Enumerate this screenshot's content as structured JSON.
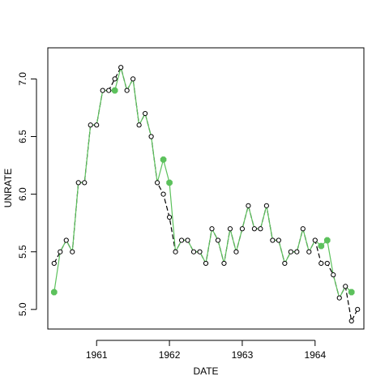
{
  "chart_data": {
    "type": "line",
    "xlabel": "DATE",
    "ylabel": "UNRATE",
    "xlim": [
      1960.33,
      1964.67
    ],
    "ylim": [
      4.83,
      7.27
    ],
    "x_ticks": [
      1961,
      1962,
      1963,
      1964
    ],
    "x_tick_labels": [
      "1961",
      "1962",
      "1963",
      "1964"
    ],
    "y_ticks": [
      5.0,
      5.5,
      6.0,
      6.5,
      7.0
    ],
    "y_tick_labels": [
      "5.0",
      "5.5",
      "6.0",
      "6.5",
      "7.0"
    ],
    "grid": false,
    "series": [
      {
        "style": "dashed black line with open circle markers",
        "color": "#000000",
        "x": [
          "1960-06",
          "1960-07",
          "1960-08",
          "1960-09",
          "1960-10",
          "1960-11",
          "1960-12",
          "1961-01",
          "1961-02",
          "1961-03",
          "1961-04",
          "1961-05",
          "1961-06",
          "1961-07",
          "1961-08",
          "1961-09",
          "1961-10",
          "1961-11",
          "1961-12",
          "1962-01",
          "1962-02",
          "1962-03",
          "1962-04",
          "1962-05",
          "1962-06",
          "1962-07",
          "1962-08",
          "1962-09",
          "1962-10",
          "1962-11",
          "1962-12",
          "1963-01",
          "1963-02",
          "1963-03",
          "1963-04",
          "1963-05",
          "1963-06",
          "1963-07",
          "1963-08",
          "1963-09",
          "1963-10",
          "1963-11",
          "1963-12",
          "1964-01",
          "1964-02",
          "1964-03",
          "1964-04",
          "1964-05",
          "1964-06",
          "1964-07",
          "1964-08"
        ],
        "values": [
          5.4,
          5.5,
          5.6,
          5.5,
          6.1,
          6.1,
          6.6,
          6.6,
          6.9,
          6.9,
          7.0,
          7.1,
          6.9,
          7.0,
          6.6,
          6.7,
          6.5,
          6.1,
          6.0,
          5.8,
          5.5,
          5.6,
          5.6,
          5.5,
          5.5,
          5.4,
          5.7,
          5.6,
          5.4,
          5.7,
          5.5,
          5.7,
          5.9,
          5.7,
          5.7,
          5.9,
          5.6,
          5.6,
          5.4,
          5.5,
          5.5,
          5.7,
          5.5,
          5.6,
          5.4,
          5.4,
          5.3,
          5.1,
          5.2,
          4.9,
          5.0
        ]
      },
      {
        "style": "green line with filled green markers at points that differ",
        "color": "#5cc15c",
        "x": [
          "1960-06",
          "1960-07",
          "1960-08",
          "1960-09",
          "1960-10",
          "1960-11",
          "1960-12",
          "1961-01",
          "1961-02",
          "1961-03",
          "1961-04",
          "1961-05",
          "1961-06",
          "1961-07",
          "1961-08",
          "1961-09",
          "1961-10",
          "1961-11",
          "1961-12",
          "1962-01",
          "1962-02",
          "1962-03",
          "1962-04",
          "1962-05",
          "1962-06",
          "1962-07",
          "1962-08",
          "1962-09",
          "1962-10",
          "1962-11",
          "1962-12",
          "1963-01",
          "1963-02",
          "1963-03",
          "1963-04",
          "1963-05",
          "1963-06",
          "1963-07",
          "1963-08",
          "1963-09",
          "1963-10",
          "1963-11",
          "1963-12",
          "1964-01",
          "1964-02",
          "1964-03",
          "1964-04",
          "1964-05",
          "1964-06",
          "1964-07"
        ],
        "values": [
          5.15,
          5.5,
          5.6,
          5.5,
          6.1,
          6.1,
          6.6,
          6.6,
          6.9,
          6.9,
          6.9,
          7.1,
          6.9,
          7.0,
          6.6,
          6.7,
          6.5,
          6.1,
          6.3,
          6.1,
          5.5,
          5.6,
          5.6,
          5.5,
          5.5,
          5.4,
          5.7,
          5.6,
          5.4,
          5.7,
          5.5,
          5.7,
          5.9,
          5.7,
          5.7,
          5.9,
          5.6,
          5.6,
          5.4,
          5.5,
          5.5,
          5.7,
          5.5,
          5.6,
          5.55,
          5.6,
          5.3,
          5.1,
          5.2,
          5.15
        ],
        "highlighted": [
          "1960-06",
          "1961-04",
          "1961-12",
          "1962-01",
          "1964-02",
          "1964-03",
          "1964-07"
        ]
      }
    ]
  }
}
